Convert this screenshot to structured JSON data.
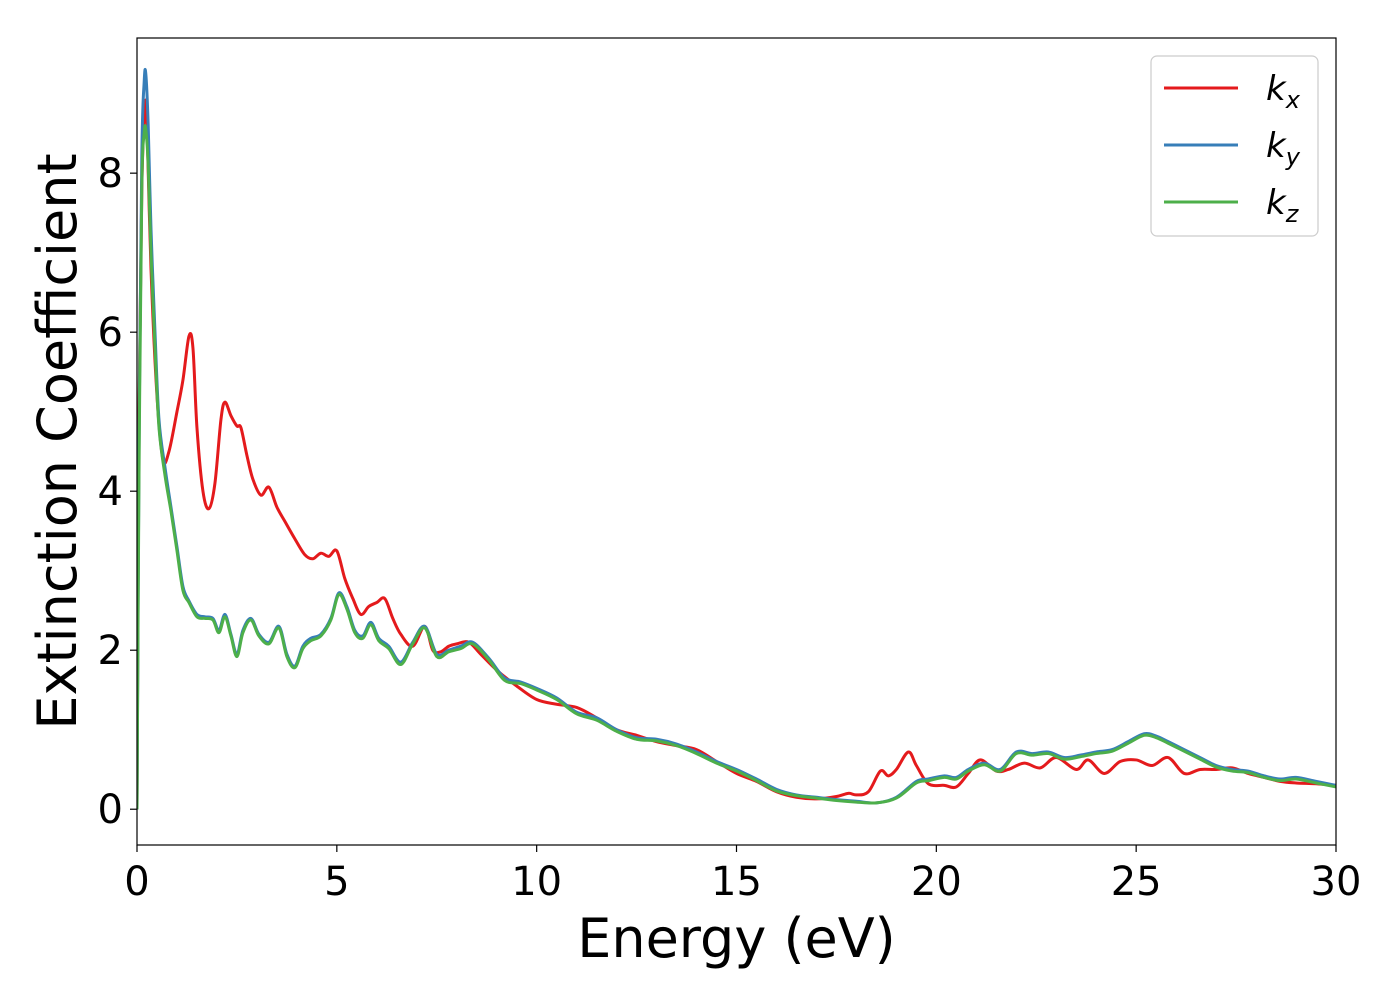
{
  "chart_data": {
    "type": "line",
    "title": "",
    "xlabel": "Energy (eV)",
    "ylabel": "Extinction Coefficient",
    "xlim": [
      0,
      30
    ],
    "ylim": [
      -0.45,
      9.7
    ],
    "xticks": [
      0,
      5,
      10,
      15,
      20,
      25,
      30
    ],
    "xtick_labels": [
      "0",
      "5",
      "10",
      "15",
      "20",
      "25",
      "30"
    ],
    "yticks": [
      0,
      2,
      4,
      6,
      8
    ],
    "ytick_labels": [
      "0",
      "2",
      "4",
      "6",
      "8"
    ],
    "grid": false,
    "legend_position": "top-right",
    "series": [
      {
        "name": "k_x",
        "label_base": "k",
        "label_sub": "x",
        "color": "#e41a1c",
        "x": [
          0,
          0.05,
          0.12,
          0.2,
          0.25,
          0.35,
          0.5,
          0.65,
          0.8,
          1.0,
          1.15,
          1.3,
          1.4,
          1.5,
          1.65,
          1.8,
          1.95,
          2.1,
          2.2,
          2.35,
          2.5,
          2.6,
          2.75,
          2.9,
          3.1,
          3.3,
          3.5,
          3.7,
          3.95,
          4.2,
          4.4,
          4.6,
          4.8,
          5.0,
          5.2,
          5.4,
          5.6,
          5.8,
          6.0,
          6.2,
          6.4,
          6.6,
          6.9,
          7.2,
          7.4,
          7.6,
          7.8,
          8.0,
          8.3,
          8.6,
          9.0,
          9.5,
          10.0,
          10.5,
          11.0,
          11.5,
          12.0,
          12.5,
          13.0,
          13.5,
          14.0,
          14.5,
          15.0,
          15.5,
          16.0,
          16.5,
          17.0,
          17.5,
          17.8,
          18.0,
          18.3,
          18.6,
          18.8,
          19.0,
          19.3,
          19.5,
          19.8,
          20.2,
          20.5,
          20.8,
          21.1,
          21.5,
          21.8,
          22.2,
          22.6,
          23.0,
          23.5,
          23.8,
          24.2,
          24.6,
          25.0,
          25.4,
          25.8,
          26.2,
          26.6,
          27.0,
          27.4,
          27.8,
          28.2,
          28.6,
          29.0,
          29.5,
          30.0
        ],
        "y": [
          0,
          5.0,
          7.8,
          8.85,
          8.6,
          6.8,
          5.2,
          4.4,
          4.5,
          5.0,
          5.4,
          5.95,
          5.8,
          4.8,
          4.0,
          3.78,
          4.1,
          4.9,
          5.12,
          4.95,
          4.82,
          4.8,
          4.45,
          4.15,
          3.95,
          4.05,
          3.8,
          3.62,
          3.4,
          3.2,
          3.15,
          3.22,
          3.18,
          3.25,
          2.9,
          2.65,
          2.45,
          2.55,
          2.6,
          2.65,
          2.4,
          2.2,
          2.05,
          2.3,
          2.0,
          1.98,
          2.05,
          2.08,
          2.1,
          1.95,
          1.75,
          1.55,
          1.38,
          1.32,
          1.28,
          1.15,
          1.0,
          0.93,
          0.85,
          0.8,
          0.75,
          0.6,
          0.45,
          0.35,
          0.22,
          0.15,
          0.13,
          0.16,
          0.2,
          0.18,
          0.22,
          0.48,
          0.42,
          0.5,
          0.72,
          0.55,
          0.32,
          0.3,
          0.28,
          0.45,
          0.62,
          0.48,
          0.5,
          0.58,
          0.52,
          0.65,
          0.5,
          0.62,
          0.45,
          0.6,
          0.62,
          0.55,
          0.65,
          0.45,
          0.5,
          0.5,
          0.52,
          0.45,
          0.4,
          0.35,
          0.33,
          0.32,
          0.3
        ]
      },
      {
        "name": "k_y",
        "label_base": "k",
        "label_sub": "y",
        "color": "#377eb8",
        "x": [
          0,
          0.05,
          0.12,
          0.18,
          0.22,
          0.28,
          0.35,
          0.45,
          0.55,
          0.7,
          0.85,
          1.0,
          1.15,
          1.3,
          1.5,
          1.7,
          1.9,
          2.05,
          2.2,
          2.35,
          2.5,
          2.65,
          2.85,
          3.05,
          3.3,
          3.55,
          3.75,
          3.95,
          4.15,
          4.35,
          4.6,
          4.85,
          5.05,
          5.25,
          5.45,
          5.65,
          5.85,
          6.05,
          6.3,
          6.6,
          6.9,
          7.2,
          7.5,
          7.8,
          8.1,
          8.4,
          8.8,
          9.2,
          9.6,
          10.0,
          10.5,
          11.0,
          11.5,
          12.0,
          12.5,
          13.0,
          13.5,
          14.0,
          14.5,
          15.0,
          15.5,
          16.0,
          16.5,
          17.0,
          17.5,
          18.0,
          18.5,
          19.0,
          19.5,
          19.8,
          20.2,
          20.5,
          20.8,
          21.2,
          21.6,
          22.0,
          22.4,
          22.8,
          23.2,
          23.6,
          24.0,
          24.4,
          24.8,
          25.2,
          25.5,
          25.8,
          26.2,
          26.6,
          27.0,
          27.4,
          27.8,
          28.2,
          28.6,
          29.0,
          29.5,
          30.0
        ],
        "y": [
          0,
          4.5,
          8.2,
          9.15,
          9.25,
          8.6,
          7.3,
          6.0,
          4.9,
          4.3,
          3.8,
          3.3,
          2.8,
          2.62,
          2.45,
          2.42,
          2.4,
          2.25,
          2.45,
          2.2,
          1.95,
          2.25,
          2.4,
          2.2,
          2.1,
          2.3,
          1.95,
          1.8,
          2.05,
          2.15,
          2.2,
          2.4,
          2.72,
          2.55,
          2.25,
          2.18,
          2.35,
          2.15,
          2.05,
          1.85,
          2.1,
          2.3,
          1.95,
          2.0,
          2.05,
          2.1,
          1.9,
          1.65,
          1.6,
          1.52,
          1.4,
          1.22,
          1.15,
          1.0,
          0.9,
          0.88,
          0.82,
          0.72,
          0.6,
          0.5,
          0.38,
          0.25,
          0.18,
          0.15,
          0.12,
          0.1,
          0.08,
          0.15,
          0.35,
          0.38,
          0.42,
          0.4,
          0.5,
          0.58,
          0.5,
          0.72,
          0.7,
          0.72,
          0.65,
          0.68,
          0.72,
          0.75,
          0.85,
          0.95,
          0.92,
          0.85,
          0.75,
          0.65,
          0.55,
          0.5,
          0.48,
          0.42,
          0.38,
          0.4,
          0.35,
          0.3
        ]
      },
      {
        "name": "k_z",
        "label_base": "k",
        "label_sub": "z",
        "color": "#4daf4a",
        "x": [
          0,
          0.05,
          0.12,
          0.18,
          0.22,
          0.28,
          0.35,
          0.45,
          0.55,
          0.7,
          0.85,
          1.0,
          1.15,
          1.3,
          1.5,
          1.7,
          1.9,
          2.05,
          2.2,
          2.35,
          2.5,
          2.65,
          2.85,
          3.05,
          3.3,
          3.55,
          3.75,
          3.95,
          4.15,
          4.35,
          4.6,
          4.85,
          5.05,
          5.25,
          5.45,
          5.65,
          5.85,
          6.05,
          6.3,
          6.6,
          6.9,
          7.2,
          7.5,
          7.8,
          8.1,
          8.4,
          8.8,
          9.2,
          9.6,
          10.0,
          10.5,
          11.0,
          11.5,
          12.0,
          12.5,
          13.0,
          13.5,
          14.0,
          14.5,
          15.0,
          15.5,
          16.0,
          16.5,
          17.0,
          17.5,
          18.0,
          18.5,
          19.0,
          19.5,
          19.8,
          20.2,
          20.5,
          20.8,
          21.2,
          21.6,
          22.0,
          22.4,
          22.8,
          23.2,
          23.6,
          24.0,
          24.4,
          24.8,
          25.2,
          25.5,
          25.8,
          26.2,
          26.6,
          27.0,
          27.4,
          27.8,
          28.2,
          28.6,
          29.0,
          29.5,
          30.0
        ],
        "y": [
          0,
          4.2,
          7.8,
          8.5,
          8.55,
          8.1,
          7.0,
          5.8,
          4.8,
          4.2,
          3.75,
          3.25,
          2.75,
          2.6,
          2.42,
          2.4,
          2.38,
          2.22,
          2.42,
          2.18,
          1.92,
          2.22,
          2.38,
          2.18,
          2.08,
          2.28,
          1.92,
          1.78,
          2.02,
          2.12,
          2.18,
          2.38,
          2.7,
          2.52,
          2.22,
          2.15,
          2.32,
          2.12,
          2.02,
          1.82,
          2.08,
          2.28,
          1.92,
          1.98,
          2.02,
          2.08,
          1.88,
          1.62,
          1.58,
          1.5,
          1.38,
          1.2,
          1.12,
          0.98,
          0.88,
          0.86,
          0.8,
          0.7,
          0.58,
          0.48,
          0.36,
          0.23,
          0.17,
          0.14,
          0.11,
          0.09,
          0.08,
          0.14,
          0.33,
          0.36,
          0.4,
          0.38,
          0.48,
          0.56,
          0.48,
          0.7,
          0.68,
          0.7,
          0.63,
          0.66,
          0.7,
          0.73,
          0.83,
          0.93,
          0.9,
          0.83,
          0.73,
          0.63,
          0.53,
          0.48,
          0.46,
          0.4,
          0.36,
          0.38,
          0.33,
          0.28
        ]
      }
    ]
  }
}
